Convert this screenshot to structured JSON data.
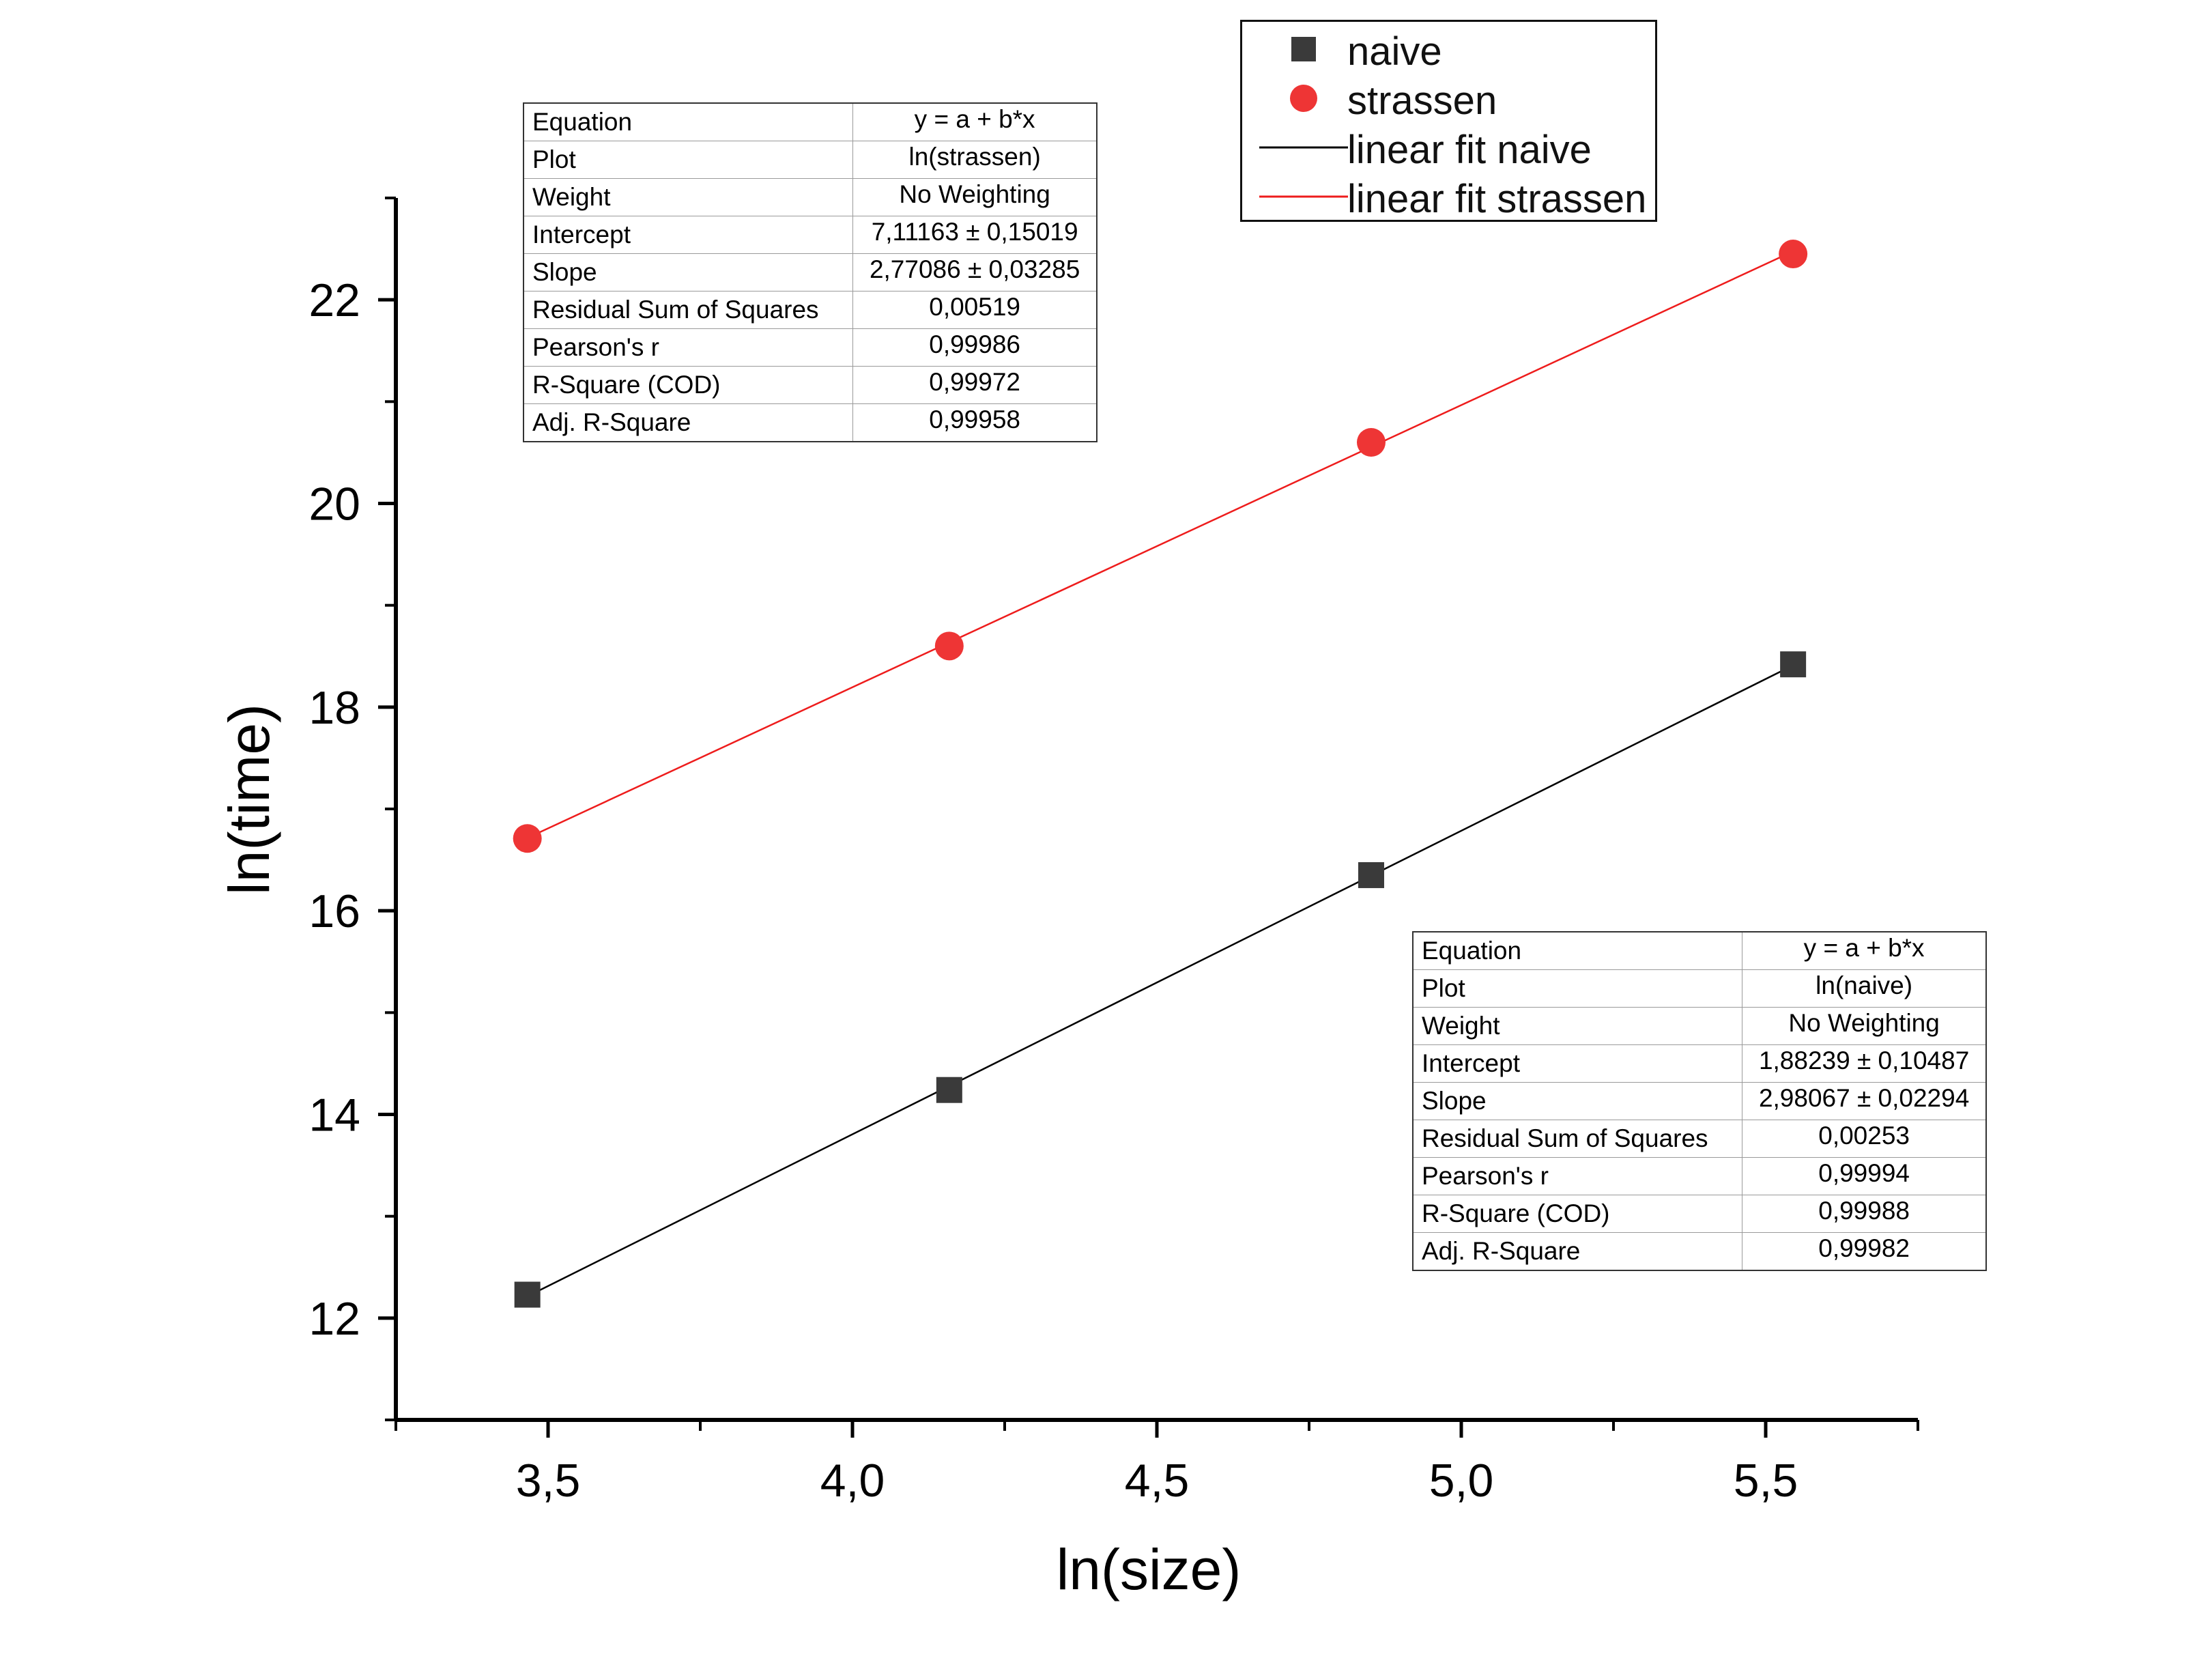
{
  "chart_data": {
    "type": "scatter",
    "xlabel": "ln(size)",
    "ylabel": "ln(time)",
    "xlim": [
      3.25,
      5.75
    ],
    "ylim": [
      11,
      23
    ],
    "x_ticks": [
      3.5,
      4.0,
      4.5,
      5.0,
      5.5
    ],
    "x_tick_labels": [
      "3,5",
      "4,0",
      "4,5",
      "5,0",
      "5,5"
    ],
    "y_ticks": [
      12,
      14,
      16,
      18,
      20,
      22
    ],
    "y_tick_labels": [
      "12",
      "14",
      "16",
      "18",
      "20",
      "22"
    ],
    "grid": false,
    "legend_position": "top-right",
    "series": [
      {
        "name": "naive",
        "marker": "square",
        "color": "#3a3a3a",
        "x": [
          3.466,
          4.159,
          4.852,
          5.545
        ],
        "y": [
          12.23,
          14.24,
          16.35,
          18.42
        ]
      },
      {
        "name": "strassen",
        "marker": "circle",
        "color": "#ee3535",
        "x": [
          3.466,
          4.159,
          4.852,
          5.545
        ],
        "y": [
          16.71,
          18.6,
          20.6,
          22.45
        ]
      }
    ],
    "fits": [
      {
        "name": "linear fit naive",
        "color": "#000000",
        "intercept": 1.88239,
        "slope": 2.98067,
        "x_range": [
          3.466,
          5.545
        ]
      },
      {
        "name": "linear fit strassen",
        "color": "#ee1c1c",
        "intercept": 7.11163,
        "slope": 2.77086,
        "x_range": [
          3.466,
          5.545
        ]
      }
    ]
  },
  "legend": {
    "items": [
      {
        "label": "naive",
        "symbol": "square",
        "color": "#3a3a3a"
      },
      {
        "label": "strassen",
        "symbol": "circle",
        "color": "#ee3535"
      },
      {
        "label": "linear fit naive",
        "symbol": "line",
        "color": "#000000"
      },
      {
        "label": "linear fit strassen",
        "symbol": "line",
        "color": "#ee1c1c"
      }
    ]
  },
  "stats_strassen": {
    "rows": [
      {
        "key": "Equation",
        "value": "y = a + b*x"
      },
      {
        "key": "Plot",
        "value": "ln(strassen)"
      },
      {
        "key": "Weight",
        "value": "No Weighting"
      },
      {
        "key": "Intercept",
        "value": "7,11163 ± 0,15019"
      },
      {
        "key": "Slope",
        "value": "2,77086 ± 0,03285"
      },
      {
        "key": "Residual Sum of Squares",
        "value": "0,00519"
      },
      {
        "key": "Pearson's r",
        "value": "0,99986"
      },
      {
        "key": "R-Square (COD)",
        "value": "0,99972"
      },
      {
        "key": "Adj. R-Square",
        "value": "0,99958"
      }
    ]
  },
  "stats_naive": {
    "rows": [
      {
        "key": "Equation",
        "value": "y = a + b*x"
      },
      {
        "key": "Plot",
        "value": "ln(naive)"
      },
      {
        "key": "Weight",
        "value": "No Weighting"
      },
      {
        "key": "Intercept",
        "value": "1,88239 ± 0,10487"
      },
      {
        "key": "Slope",
        "value": "2,98067 ± 0,02294"
      },
      {
        "key": "Residual Sum of Squares",
        "value": "0,00253"
      },
      {
        "key": "Pearson's r",
        "value": "0,99994"
      },
      {
        "key": "R-Square (COD)",
        "value": "0,99988"
      },
      {
        "key": "Adj. R-Square",
        "value": "0,99982"
      }
    ]
  }
}
